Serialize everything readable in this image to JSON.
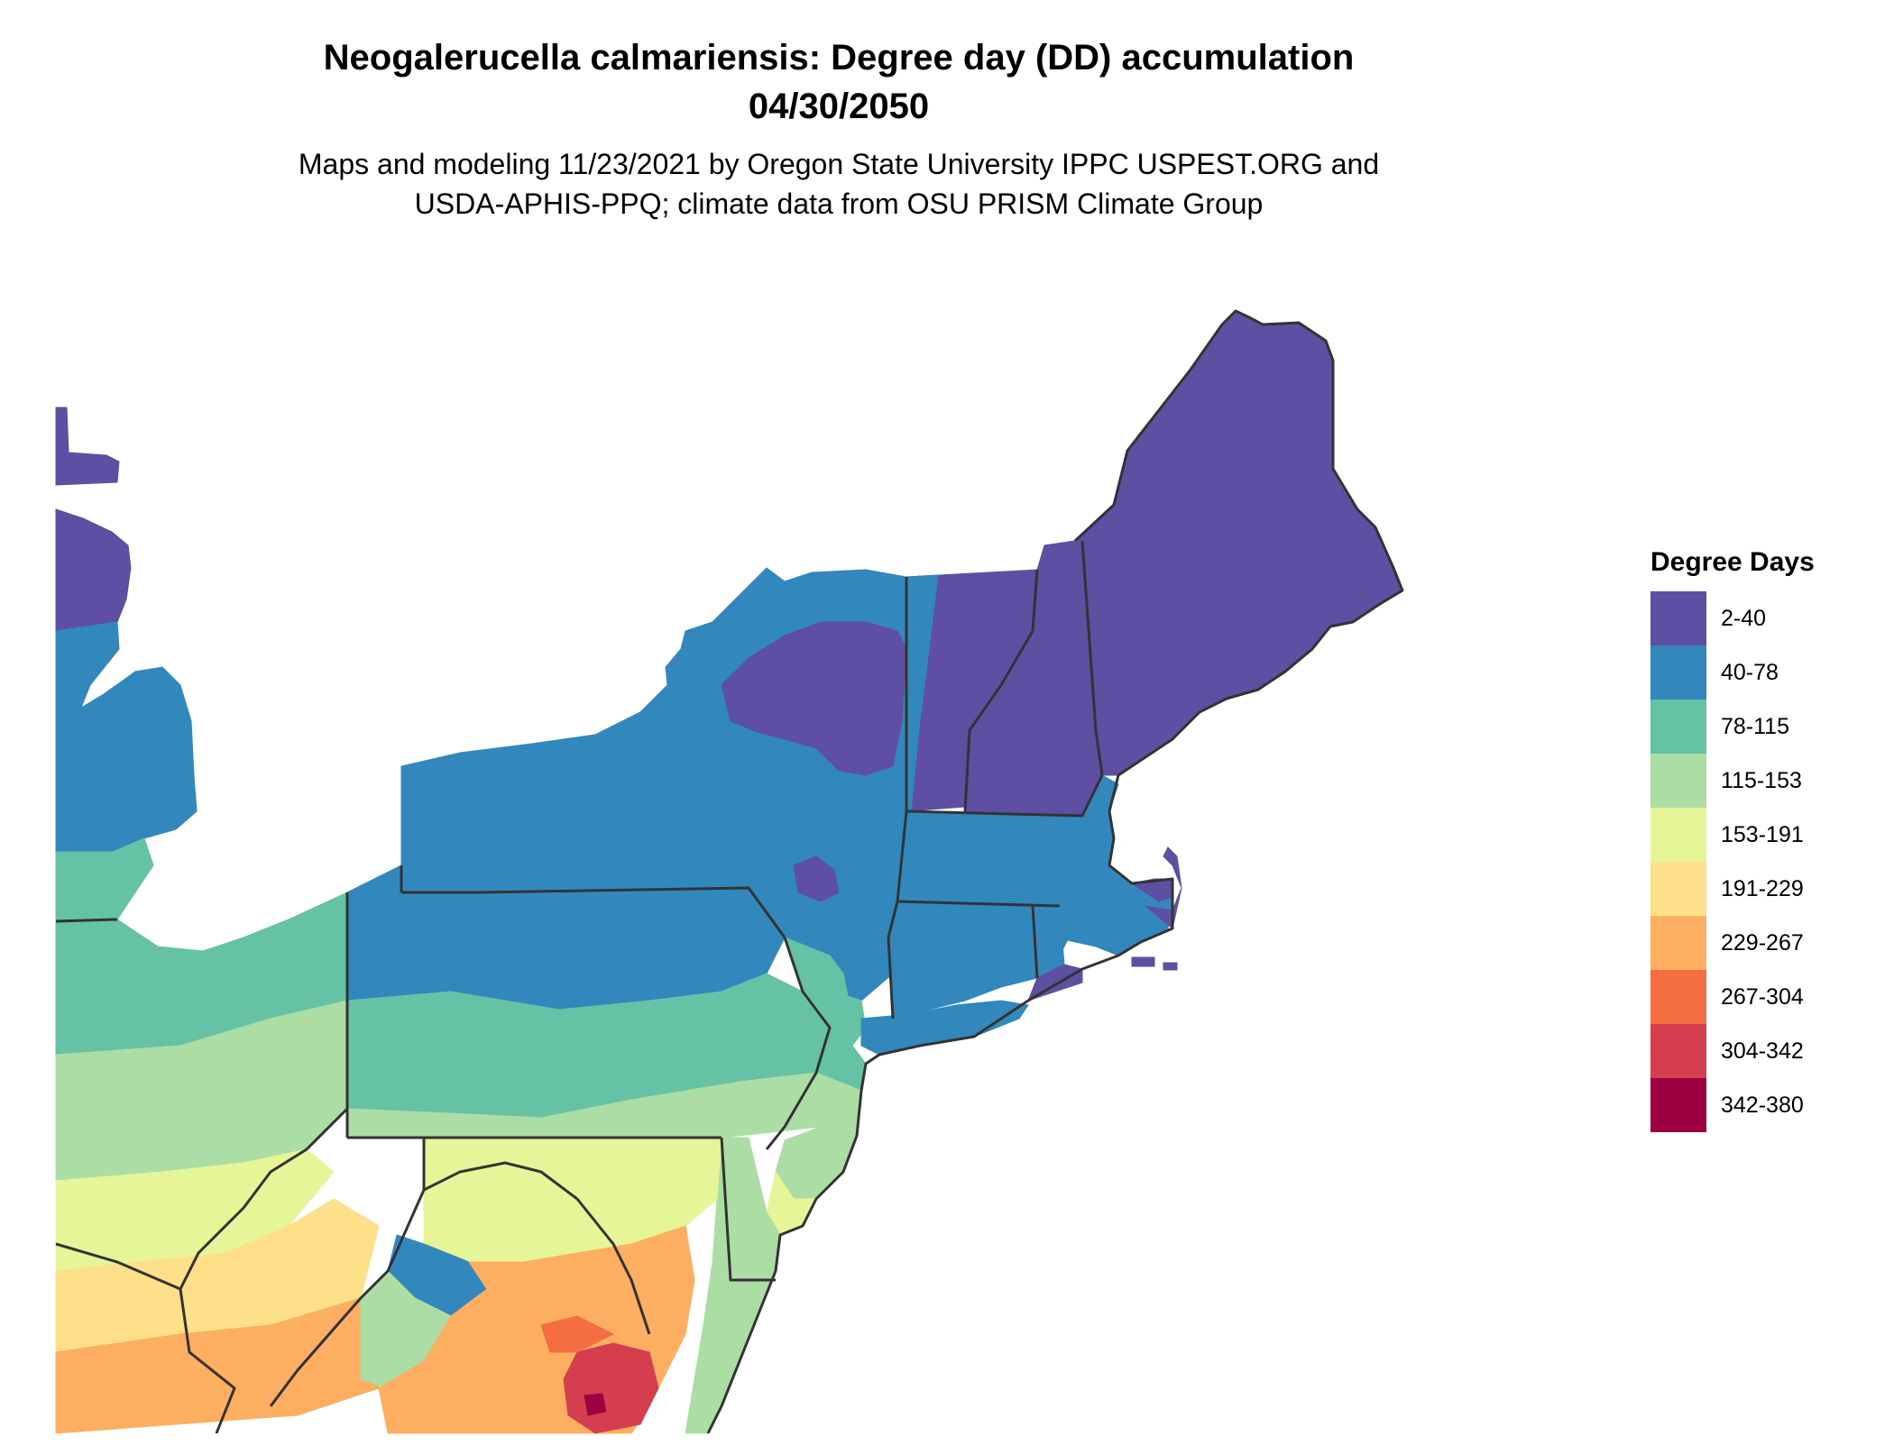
{
  "title_line1": "Neogalerucella calmariensis: Degree day (DD) accumulation",
  "title_line2": "04/30/2050",
  "subtitle_line1": "Maps and modeling 11/23/2021 by Oregon State University IPPC USPEST.ORG and",
  "subtitle_line2": "USDA-APHIS-PPQ; climate data from OSU PRISM Climate Group",
  "legend": {
    "title": "Degree Days",
    "items": [
      {
        "label": "2-40",
        "color": "#5e4fa2"
      },
      {
        "label": "40-78",
        "color": "#3288bd"
      },
      {
        "label": "78-115",
        "color": "#66c2a5"
      },
      {
        "label": "115-153",
        "color": "#abdda4"
      },
      {
        "label": "153-191",
        "color": "#e6f598"
      },
      {
        "label": "191-229",
        "color": "#fee08b"
      },
      {
        "label": "229-267",
        "color": "#fdae61"
      },
      {
        "label": "267-304",
        "color": "#f46d43"
      },
      {
        "label": "304-342",
        "color": "#d53e4f"
      },
      {
        "label": "342-380",
        "color": "#9e0142"
      }
    ]
  },
  "boundary_color": "#333333"
}
